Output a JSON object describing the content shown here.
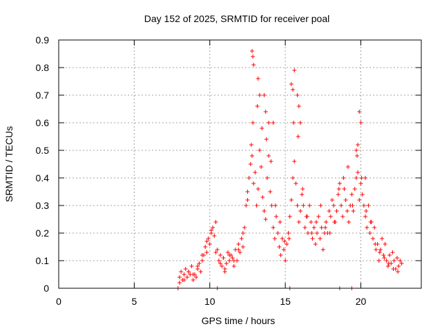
{
  "chart_data": {
    "type": "scatter",
    "title": "Day 152 of 2025, SRMTID for receiver poal",
    "xlabel": "GPS time / hours",
    "ylabel": "SRMTID / TECUs",
    "xlim": [
      0,
      24
    ],
    "ylim": [
      0,
      0.9
    ],
    "xticks": [
      0,
      5,
      10,
      15,
      20
    ],
    "yticks": [
      0,
      0.1,
      0.2,
      0.3,
      0.4,
      0.5,
      0.6,
      0.7,
      0.8,
      0.9
    ],
    "xtick_labels": [
      "0",
      "5",
      "10",
      "15",
      "20"
    ],
    "ytick_labels": [
      "0",
      "0.1",
      "0.2",
      "0.3",
      "0.4",
      "0.5",
      "0.6",
      "0.7",
      "0.8",
      "0.9"
    ],
    "grid": true,
    "marker": "+",
    "color": "#ff0000",
    "series": [
      {
        "name": "SRMTID",
        "x": [
          7.9,
          8.0,
          8.1,
          8.2,
          8.3,
          8.4,
          8.5,
          8.6,
          8.7,
          8.8,
          8.9,
          9.0,
          9.1,
          9.2,
          9.3,
          9.4,
          9.5,
          9.6,
          9.7,
          9.8,
          9.9,
          10.0,
          10.1,
          10.2,
          10.3,
          10.4,
          10.5,
          10.6,
          10.7,
          10.8,
          10.9,
          11.0,
          11.1,
          11.2,
          11.3,
          11.4,
          11.5,
          11.6,
          11.7,
          11.8,
          11.9,
          12.0,
          12.1,
          12.2,
          12.3,
          12.4,
          12.5,
          12.6,
          12.7,
          12.75,
          12.8,
          12.9,
          13.0,
          13.1,
          13.2,
          13.3,
          13.4,
          13.5,
          13.6,
          13.7,
          13.8,
          13.9,
          14.0,
          14.1,
          14.2,
          14.3,
          14.4,
          14.5,
          14.6,
          14.7,
          14.8,
          14.9,
          15.0,
          15.1,
          15.2,
          15.3,
          15.4,
          15.5,
          15.6,
          15.7,
          15.8,
          15.9,
          16.0,
          16.1,
          16.2,
          16.3,
          16.4,
          16.5,
          16.6,
          16.7,
          16.8,
          16.9,
          17.0,
          17.1,
          17.2,
          17.3,
          17.4,
          17.5,
          17.6,
          17.7,
          17.8,
          17.9,
          18.0,
          18.1,
          18.2,
          18.3,
          18.4,
          18.5,
          18.6,
          18.7,
          18.8,
          18.9,
          19.0,
          19.1,
          19.2,
          19.3,
          19.4,
          19.5,
          19.6,
          19.7,
          19.8,
          19.9,
          20.0,
          20.1,
          20.2,
          20.3,
          20.4,
          20.5,
          20.6,
          20.7,
          20.8,
          20.9,
          21.0,
          21.1,
          21.2,
          21.3,
          21.4,
          21.5,
          21.6,
          21.7,
          21.8,
          21.9,
          22.0,
          22.1,
          22.2,
          22.3,
          22.4,
          22.5,
          22.6,
          22.7,
          8.0,
          8.3,
          8.6,
          8.9,
          9.2,
          9.5,
          9.8,
          10.1,
          10.4,
          10.7,
          11.0,
          11.3,
          11.6,
          11.9,
          12.2,
          12.5,
          12.85,
          13.15,
          13.45,
          13.75,
          14.05,
          14.35,
          14.65,
          14.95,
          15.25,
          15.55,
          15.85,
          16.15,
          16.45,
          16.75,
          17.05,
          17.35,
          17.65,
          17.95,
          18.25,
          18.55,
          18.85,
          19.15,
          19.45,
          19.75,
          20.05,
          20.35,
          20.65,
          20.95,
          21.25,
          21.55,
          21.85,
          22.15,
          22.45,
          12.8,
          12.85,
          13.2,
          13.6,
          13.9,
          15.4,
          15.6,
          15.9,
          16.0,
          19.8,
          19.9,
          12.9,
          13.3,
          13.7,
          14.2,
          15.5,
          15.8,
          19.7,
          20.0,
          20.3,
          10.5,
          15.3,
          18.6,
          19.4
        ],
        "y": [
          0.0,
          0.04,
          0.06,
          0.03,
          0.05,
          0.07,
          0.04,
          0.06,
          0.05,
          0.08,
          0.03,
          0.05,
          0.04,
          0.07,
          0.09,
          0.06,
          0.1,
          0.12,
          0.15,
          0.13,
          0.18,
          0.16,
          0.2,
          0.22,
          0.19,
          0.24,
          0.14,
          0.1,
          0.12,
          0.08,
          0.11,
          0.06,
          0.09,
          0.13,
          0.1,
          0.12,
          0.11,
          0.08,
          0.14,
          0.1,
          0.16,
          0.13,
          0.18,
          0.15,
          0.22,
          0.3,
          0.35,
          0.4,
          0.45,
          0.52,
          0.48,
          0.38,
          0.42,
          0.3,
          0.36,
          0.5,
          0.44,
          0.33,
          0.28,
          0.25,
          0.4,
          0.48,
          0.35,
          0.3,
          0.22,
          0.18,
          0.26,
          0.2,
          0.15,
          0.12,
          0.18,
          0.14,
          0.1,
          0.16,
          0.2,
          0.26,
          0.32,
          0.4,
          0.46,
          0.38,
          0.3,
          0.24,
          0.28,
          0.34,
          0.3,
          0.22,
          0.26,
          0.2,
          0.3,
          0.24,
          0.18,
          0.22,
          0.16,
          0.2,
          0.26,
          0.18,
          0.22,
          0.14,
          0.2,
          0.24,
          0.2,
          0.28,
          0.26,
          0.32,
          0.3,
          0.24,
          0.28,
          0.34,
          0.38,
          0.3,
          0.26,
          0.36,
          0.32,
          0.28,
          0.24,
          0.3,
          0.34,
          0.28,
          0.36,
          0.4,
          0.42,
          0.32,
          0.38,
          0.34,
          0.3,
          0.26,
          0.22,
          0.3,
          0.2,
          0.24,
          0.18,
          0.22,
          0.14,
          0.16,
          0.1,
          0.14,
          0.18,
          0.12,
          0.16,
          0.1,
          0.08,
          0.12,
          0.09,
          0.13,
          0.1,
          0.07,
          0.11,
          0.08,
          0.1,
          0.09,
          0.02,
          0.03,
          0.06,
          0.05,
          0.08,
          0.12,
          0.17,
          0.21,
          0.13,
          0.09,
          0.07,
          0.12,
          0.1,
          0.14,
          0.2,
          0.32,
          0.6,
          0.66,
          0.58,
          0.54,
          0.46,
          0.3,
          0.24,
          0.17,
          0.18,
          0.6,
          0.55,
          0.36,
          0.26,
          0.2,
          0.24,
          0.3,
          0.22,
          0.2,
          0.24,
          0.36,
          0.4,
          0.44,
          0.3,
          0.48,
          0.4,
          0.28,
          0.24,
          0.16,
          0.13,
          0.11,
          0.09,
          0.07,
          0.06,
          0.86,
          0.84,
          0.76,
          0.7,
          0.6,
          0.74,
          0.79,
          0.66,
          0.6,
          0.52,
          0.64,
          0.81,
          0.7,
          0.64,
          0.6,
          0.72,
          0.7,
          0.5,
          0.6,
          0.4,
          0.0,
          0.0,
          0.0,
          0.0
        ]
      }
    ]
  }
}
